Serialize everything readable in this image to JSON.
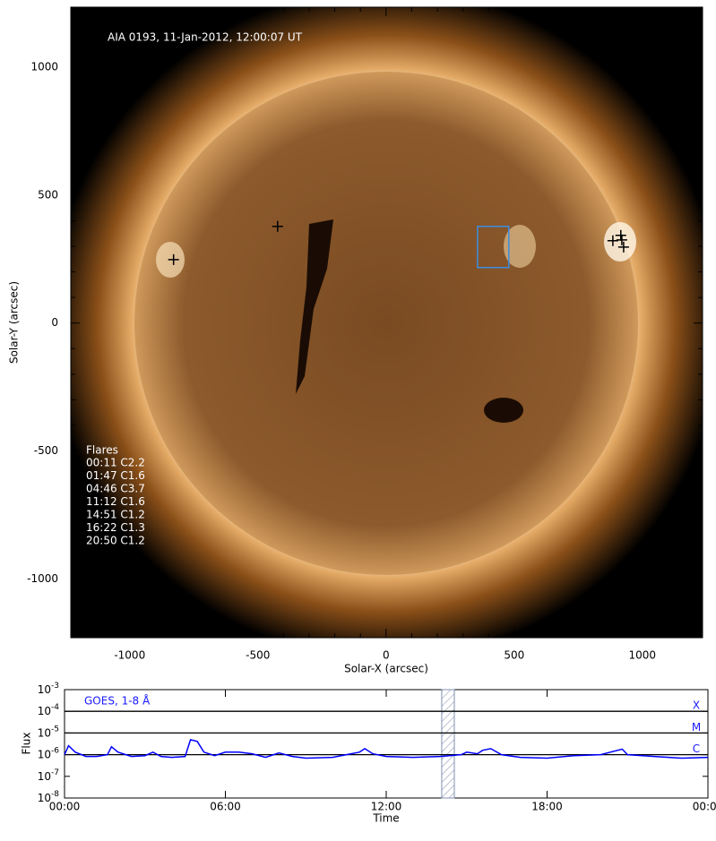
{
  "chart_data": [
    {
      "type": "scatter",
      "annotation": "AIA 0193, 11-Jan-2012, 12:00:07 UT",
      "xlabel": "Solar-X (arcsec)",
      "ylabel": "Solar-Y (arcsec)",
      "xlim": [
        -1230,
        1235
      ],
      "ylim": [
        -1230,
        1235
      ],
      "xticks": [
        -1000,
        -500,
        0,
        500,
        1000
      ],
      "yticks": [
        -1000,
        -500,
        0,
        500,
        1000
      ],
      "xminorticks": [
        -1200,
        -1100,
        -900,
        -800,
        -700,
        -600,
        -400,
        -300,
        -200,
        -100,
        100,
        200,
        300,
        400,
        600,
        700,
        800,
        900,
        1100,
        1200
      ],
      "yminorticks": [
        -1200,
        -1100,
        -900,
        -800,
        -700,
        -600,
        -400,
        -300,
        -200,
        -100,
        100,
        200,
        300,
        400,
        600,
        700,
        800,
        900,
        1100,
        1200
      ],
      "series": [
        {
          "color": "#000000",
          "x": [
            -829,
            -423,
            885,
            916,
            920,
            927
          ],
          "y": [
            248,
            378,
            322,
            343,
            325,
            297
          ]
        }
      ],
      "region": {
        "color": "#3c8ee0",
        "x": [
          357,
          479
        ],
        "y": [
          217,
          378
        ]
      },
      "flare_list": {
        "title": "Flares",
        "entries": [
          "00:11 C2.2",
          "01:47 C1.6",
          "04:46 C3.7",
          "11:12 C1.6",
          "14:51 C1.2",
          "16:22 C1.3",
          "20:50 C1.2"
        ]
      }
    },
    {
      "type": "line",
      "annotation": "GOES, 1-8 Å",
      "xlabel": "Time",
      "ylabel": "Flux",
      "log_y": true,
      "xlim": [
        0,
        24
      ],
      "xticks": [
        {
          "value": 0,
          "label": "00:00"
        },
        {
          "value": 6,
          "label": "06:00"
        },
        {
          "value": 12,
          "label": "12:00"
        },
        {
          "value": 18,
          "label": "18:00"
        },
        {
          "value": 24,
          "label": "00:00"
        }
      ],
      "ylim": [
        1e-08,
        0.001
      ],
      "yticks": [
        {
          "value": 1e-08,
          "label": "10",
          "exponent": "-8"
        },
        {
          "value": 1e-07,
          "label": "10",
          "exponent": "-7"
        },
        {
          "value": 1e-06,
          "label": "10",
          "exponent": "-6"
        },
        {
          "value": 1e-05,
          "label": "10",
          "exponent": "-5"
        },
        {
          "value": 0.0001,
          "label": "10",
          "exponent": "-4"
        },
        {
          "value": 0.001,
          "label": "10",
          "exponent": "-3"
        }
      ],
      "class_lines": [
        {
          "value": 0.0001,
          "label": "X"
        },
        {
          "value": 1e-05,
          "label": "M"
        },
        {
          "value": 1e-06,
          "label": "C"
        }
      ],
      "highlight_x": [
        14.07,
        14.54
      ],
      "x": [
        0,
        0.15,
        0.4,
        0.8,
        1.2,
        1.6,
        1.75,
        2.0,
        2.5,
        3.0,
        3.3,
        3.6,
        4.0,
        4.5,
        4.7,
        4.95,
        5.2,
        5.6,
        6.0,
        6.5,
        7.0,
        7.5,
        8.0,
        8.5,
        9.0,
        10,
        11.0,
        11.2,
        11.5,
        12,
        13,
        14,
        14.8,
        15,
        15.4,
        15.6,
        15.9,
        16.3,
        17,
        18,
        19,
        20,
        20.8,
        21,
        22,
        23,
        24
      ],
      "series": [
        {
          "color": "#0000ff",
          "values": [
            1e-06,
            2.6e-06,
            1.3e-06,
            8.3e-07,
            8.3e-07,
            1e-06,
            2.3e-06,
            1.3e-06,
            8.3e-07,
            9e-07,
            1.3e-06,
            8.3e-07,
            7.5e-07,
            8.3e-07,
            4.9e-06,
            4.1e-06,
            1.3e-06,
            9e-07,
            1.3e-06,
            1.3e-06,
            1.1e-06,
            7.5e-07,
            1.2e-06,
            8.3e-07,
            6.9e-07,
            7.5e-07,
            1.3e-06,
            1.9e-06,
            1.1e-06,
            8.3e-07,
            7.5e-07,
            8.3e-07,
            1e-06,
            1.3e-06,
            1.1e-06,
            1.6e-06,
            1.9e-06,
            1e-06,
            7.5e-07,
            6.9e-07,
            9e-07,
            1e-06,
            1.8e-06,
            1e-06,
            8.3e-07,
            6.9e-07,
            7.5e-07
          ]
        }
      ]
    }
  ]
}
